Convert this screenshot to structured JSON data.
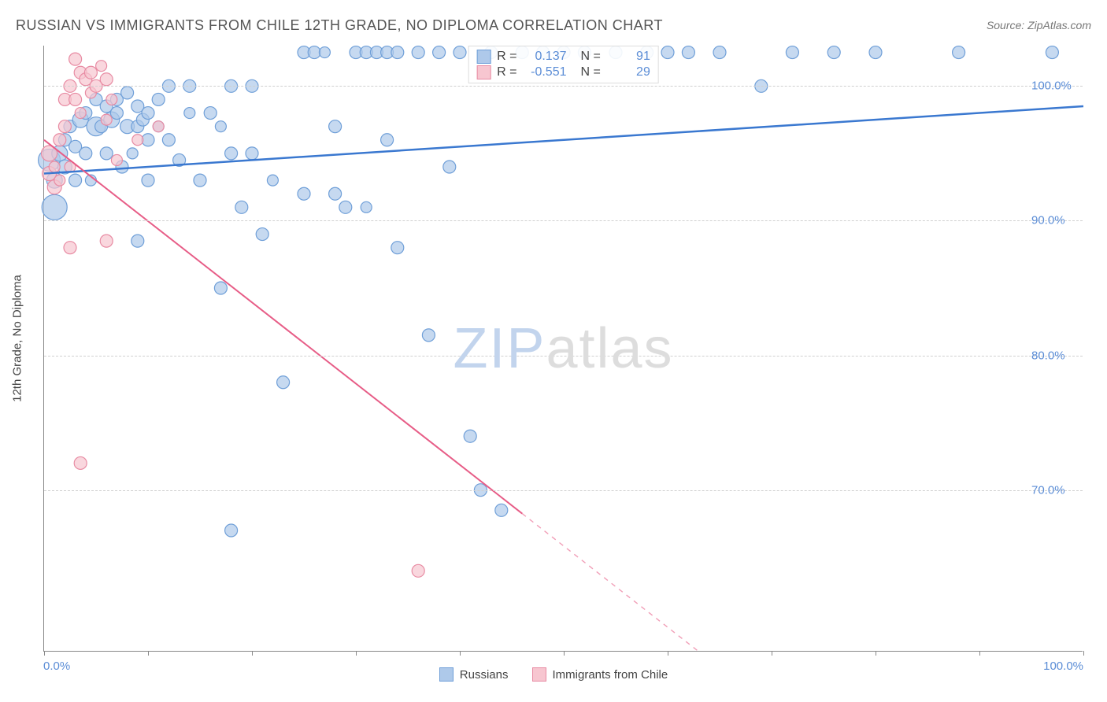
{
  "title": "RUSSIAN VS IMMIGRANTS FROM CHILE 12TH GRADE, NO DIPLOMA CORRELATION CHART",
  "source": "Source: ZipAtlas.com",
  "ylabel": "12th Grade, No Diploma",
  "watermark": {
    "part1": "ZIP",
    "part2": "atlas"
  },
  "chart": {
    "type": "scatter",
    "xlim": [
      0,
      100
    ],
    "ylim": [
      58,
      103
    ],
    "xtick_labels": {
      "min": "0.0%",
      "max": "100.0%"
    },
    "yticks": [
      70,
      80,
      90,
      100
    ],
    "ytick_labels": [
      "70.0%",
      "80.0%",
      "90.0%",
      "100.0%"
    ],
    "x_minor_ticks": [
      0,
      10,
      20,
      30,
      40,
      50,
      60,
      70,
      80,
      90,
      100
    ],
    "background_color": "#ffffff",
    "grid_color": "#d0d0d0",
    "grid_dash": true,
    "series": [
      {
        "id": "russians",
        "label": "Russians",
        "marker_fill": "#aec9ea",
        "marker_stroke": "#6f9fd8",
        "marker_opacity": 0.7,
        "marker_radius_default": 8,
        "trend": {
          "stroke": "#3a78d0",
          "stroke_width": 2.5,
          "x1": 0,
          "y1": 93.5,
          "x2": 100,
          "y2": 98.5,
          "solid_until_x": 100
        },
        "r_value": "0.137",
        "n_value": "91",
        "points": [
          {
            "x": 0.5,
            "y": 94.5,
            "r": 14
          },
          {
            "x": 1,
            "y": 93,
            "r": 10
          },
          {
            "x": 1,
            "y": 91,
            "r": 16
          },
          {
            "x": 1.5,
            "y": 95,
            "r": 10
          },
          {
            "x": 2,
            "y": 96,
            "r": 8
          },
          {
            "x": 2,
            "y": 94,
            "r": 9
          },
          {
            "x": 2.5,
            "y": 97,
            "r": 8
          },
          {
            "x": 3,
            "y": 93,
            "r": 8
          },
          {
            "x": 3,
            "y": 95.5,
            "r": 8
          },
          {
            "x": 3.5,
            "y": 97.5,
            "r": 10
          },
          {
            "x": 4,
            "y": 95,
            "r": 8
          },
          {
            "x": 4,
            "y": 98,
            "r": 8
          },
          {
            "x": 4.5,
            "y": 93,
            "r": 7
          },
          {
            "x": 5,
            "y": 97,
            "r": 12
          },
          {
            "x": 5,
            "y": 99,
            "r": 8
          },
          {
            "x": 5.5,
            "y": 97,
            "r": 8
          },
          {
            "x": 6,
            "y": 98.5,
            "r": 8
          },
          {
            "x": 6,
            "y": 95,
            "r": 8
          },
          {
            "x": 6.5,
            "y": 97.5,
            "r": 10
          },
          {
            "x": 7,
            "y": 98,
            "r": 8
          },
          {
            "x": 7,
            "y": 99,
            "r": 8
          },
          {
            "x": 7.5,
            "y": 94,
            "r": 8
          },
          {
            "x": 8,
            "y": 97,
            "r": 9
          },
          {
            "x": 8,
            "y": 99.5,
            "r": 8
          },
          {
            "x": 8.5,
            "y": 95,
            "r": 7
          },
          {
            "x": 9,
            "y": 97,
            "r": 8
          },
          {
            "x": 9,
            "y": 98.5,
            "r": 8
          },
          {
            "x": 9.5,
            "y": 97.5,
            "r": 8
          },
          {
            "x": 10,
            "y": 96,
            "r": 8
          },
          {
            "x": 10,
            "y": 98,
            "r": 8
          },
          {
            "x": 9,
            "y": 88.5,
            "r": 8
          },
          {
            "x": 10,
            "y": 93,
            "r": 8
          },
          {
            "x": 11,
            "y": 99,
            "r": 8
          },
          {
            "x": 11,
            "y": 97,
            "r": 7
          },
          {
            "x": 12,
            "y": 96,
            "r": 8
          },
          {
            "x": 12,
            "y": 100,
            "r": 8
          },
          {
            "x": 13,
            "y": 94.5,
            "r": 8
          },
          {
            "x": 14,
            "y": 98,
            "r": 7
          },
          {
            "x": 14,
            "y": 100,
            "r": 8
          },
          {
            "x": 15,
            "y": 93,
            "r": 8
          },
          {
            "x": 16,
            "y": 98,
            "r": 8
          },
          {
            "x": 17,
            "y": 97,
            "r": 7
          },
          {
            "x": 18,
            "y": 95,
            "r": 8
          },
          {
            "x": 18,
            "y": 100,
            "r": 8
          },
          {
            "x": 19,
            "y": 91,
            "r": 8
          },
          {
            "x": 17,
            "y": 85,
            "r": 8
          },
          {
            "x": 20,
            "y": 95,
            "r": 8
          },
          {
            "x": 20,
            "y": 100,
            "r": 8
          },
          {
            "x": 21,
            "y": 89,
            "r": 8
          },
          {
            "x": 18,
            "y": 67,
            "r": 8
          },
          {
            "x": 22,
            "y": 93,
            "r": 7
          },
          {
            "x": 23,
            "y": 78,
            "r": 8
          },
          {
            "x": 25,
            "y": 92,
            "r": 8
          },
          {
            "x": 25,
            "y": 102.5,
            "r": 8
          },
          {
            "x": 26,
            "y": 102.5,
            "r": 8
          },
          {
            "x": 27,
            "y": 102.5,
            "r": 7
          },
          {
            "x": 28,
            "y": 97,
            "r": 8
          },
          {
            "x": 28,
            "y": 92,
            "r": 8
          },
          {
            "x": 29,
            "y": 91,
            "r": 8
          },
          {
            "x": 30,
            "y": 102.5,
            "r": 8
          },
          {
            "x": 31,
            "y": 102.5,
            "r": 8
          },
          {
            "x": 31,
            "y": 91,
            "r": 7
          },
          {
            "x": 32,
            "y": 102.5,
            "r": 8
          },
          {
            "x": 33,
            "y": 102.5,
            "r": 8
          },
          {
            "x": 33,
            "y": 96,
            "r": 8
          },
          {
            "x": 34,
            "y": 102.5,
            "r": 8
          },
          {
            "x": 34,
            "y": 88,
            "r": 8
          },
          {
            "x": 36,
            "y": 102.5,
            "r": 8
          },
          {
            "x": 37,
            "y": 81.5,
            "r": 8
          },
          {
            "x": 38,
            "y": 102.5,
            "r": 8
          },
          {
            "x": 39,
            "y": 94,
            "r": 8
          },
          {
            "x": 40,
            "y": 102.5,
            "r": 8
          },
          {
            "x": 41,
            "y": 74,
            "r": 8
          },
          {
            "x": 42,
            "y": 70,
            "r": 8
          },
          {
            "x": 43,
            "y": 102.5,
            "r": 8
          },
          {
            "x": 44,
            "y": 68.5,
            "r": 8
          },
          {
            "x": 46,
            "y": 102.5,
            "r": 8
          },
          {
            "x": 48,
            "y": 102.5,
            "r": 8
          },
          {
            "x": 50,
            "y": 102.5,
            "r": 8
          },
          {
            "x": 52,
            "y": 102.5,
            "r": 8
          },
          {
            "x": 55,
            "y": 102.5,
            "r": 8
          },
          {
            "x": 58,
            "y": 102.5,
            "r": 8
          },
          {
            "x": 60,
            "y": 102.5,
            "r": 8
          },
          {
            "x": 62,
            "y": 102.5,
            "r": 8
          },
          {
            "x": 65,
            "y": 102.5,
            "r": 8
          },
          {
            "x": 69,
            "y": 100,
            "r": 8
          },
          {
            "x": 72,
            "y": 102.5,
            "r": 8
          },
          {
            "x": 76,
            "y": 102.5,
            "r": 8
          },
          {
            "x": 80,
            "y": 102.5,
            "r": 8
          },
          {
            "x": 88,
            "y": 102.5,
            "r": 8
          },
          {
            "x": 97,
            "y": 102.5,
            "r": 8
          }
        ]
      },
      {
        "id": "chile",
        "label": "Immigrants from Chile",
        "marker_fill": "#f7c6d0",
        "marker_stroke": "#e88ba3",
        "marker_opacity": 0.7,
        "marker_radius_default": 8,
        "trend": {
          "stroke": "#e75d87",
          "stroke_width": 2,
          "x1": 0,
          "y1": 96,
          "x2": 63,
          "y2": 58,
          "solid_until_x": 46,
          "dash_x2": 63,
          "dash_y2": 58
        },
        "r_value": "-0.551",
        "n_value": "29",
        "points": [
          {
            "x": 0.5,
            "y": 95,
            "r": 10
          },
          {
            "x": 0.5,
            "y": 93.5,
            "r": 9
          },
          {
            "x": 1,
            "y": 92.5,
            "r": 9
          },
          {
            "x": 1,
            "y": 94,
            "r": 7
          },
          {
            "x": 1.5,
            "y": 96,
            "r": 8
          },
          {
            "x": 1.5,
            "y": 93,
            "r": 7
          },
          {
            "x": 2,
            "y": 99,
            "r": 8
          },
          {
            "x": 2,
            "y": 97,
            "r": 8
          },
          {
            "x": 2.5,
            "y": 100,
            "r": 8
          },
          {
            "x": 2.5,
            "y": 94,
            "r": 7
          },
          {
            "x": 3,
            "y": 102,
            "r": 8
          },
          {
            "x": 3,
            "y": 99,
            "r": 8
          },
          {
            "x": 3.5,
            "y": 101,
            "r": 8
          },
          {
            "x": 3.5,
            "y": 98,
            "r": 7
          },
          {
            "x": 4,
            "y": 100.5,
            "r": 8
          },
          {
            "x": 4.5,
            "y": 99.5,
            "r": 7
          },
          {
            "x": 4.5,
            "y": 101,
            "r": 8
          },
          {
            "x": 5,
            "y": 100,
            "r": 8
          },
          {
            "x": 5.5,
            "y": 101.5,
            "r": 7
          },
          {
            "x": 6,
            "y": 100.5,
            "r": 8
          },
          {
            "x": 6,
            "y": 97.5,
            "r": 7
          },
          {
            "x": 6.5,
            "y": 99,
            "r": 7
          },
          {
            "x": 7,
            "y": 94.5,
            "r": 7
          },
          {
            "x": 2.5,
            "y": 88,
            "r": 8
          },
          {
            "x": 6,
            "y": 88.5,
            "r": 8
          },
          {
            "x": 3.5,
            "y": 72,
            "r": 8
          },
          {
            "x": 9,
            "y": 96,
            "r": 7
          },
          {
            "x": 11,
            "y": 97,
            "r": 7
          },
          {
            "x": 36,
            "y": 64,
            "r": 8
          }
        ]
      }
    ]
  },
  "legend_top": {
    "rows": [
      {
        "swatch_fill": "#aec9ea",
        "swatch_stroke": "#6f9fd8",
        "r_label": "R =",
        "r": "0.137",
        "n_label": "N =",
        "n": "91"
      },
      {
        "swatch_fill": "#f7c6d0",
        "swatch_stroke": "#e88ba3",
        "r_label": "R =",
        "r": "-0.551",
        "n_label": "N =",
        "n": "29"
      }
    ]
  },
  "legend_bottom": {
    "items": [
      {
        "swatch_fill": "#aec9ea",
        "swatch_stroke": "#6f9fd8",
        "label": "Russians"
      },
      {
        "swatch_fill": "#f7c6d0",
        "swatch_stroke": "#e88ba3",
        "label": "Immigrants from Chile"
      }
    ]
  }
}
